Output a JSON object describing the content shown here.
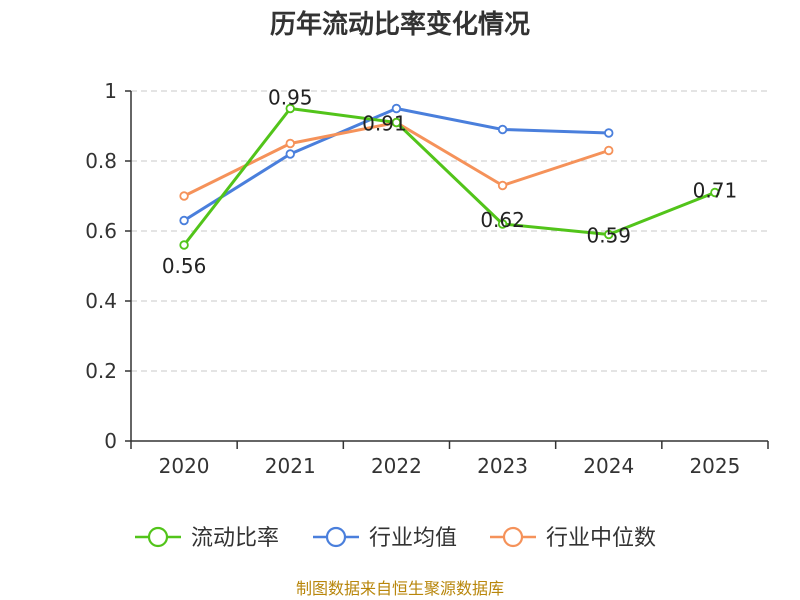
{
  "chart_data": {
    "type": "line",
    "title": "历年流动比率变化情况",
    "categories": [
      "2020",
      "2021",
      "2022",
      "2023",
      "2024",
      "2025"
    ],
    "yticks": [
      "0",
      "0.2",
      "0.4",
      "0.6",
      "0.8",
      "1"
    ],
    "ylim": [
      0,
      1
    ],
    "grid": true,
    "legend_position": "bottom",
    "series": [
      {
        "name": "流动比率",
        "color": "#52c41a",
        "values": [
          0.56,
          0.95,
          0.91,
          0.62,
          0.59,
          0.71
        ],
        "labels": [
          "0.56",
          "0.95",
          "0.91",
          "0.62",
          "0.59",
          "0.71"
        ]
      },
      {
        "name": "行业均值",
        "color": "#4a7fdc",
        "values": [
          0.63,
          0.82,
          0.95,
          0.89,
          0.88,
          null
        ]
      },
      {
        "name": "行业中位数",
        "color": "#f5925a",
        "values": [
          0.7,
          0.85,
          0.91,
          0.73,
          0.83,
          null
        ]
      }
    ],
    "source": "制图数据来自恒生聚源数据库"
  }
}
